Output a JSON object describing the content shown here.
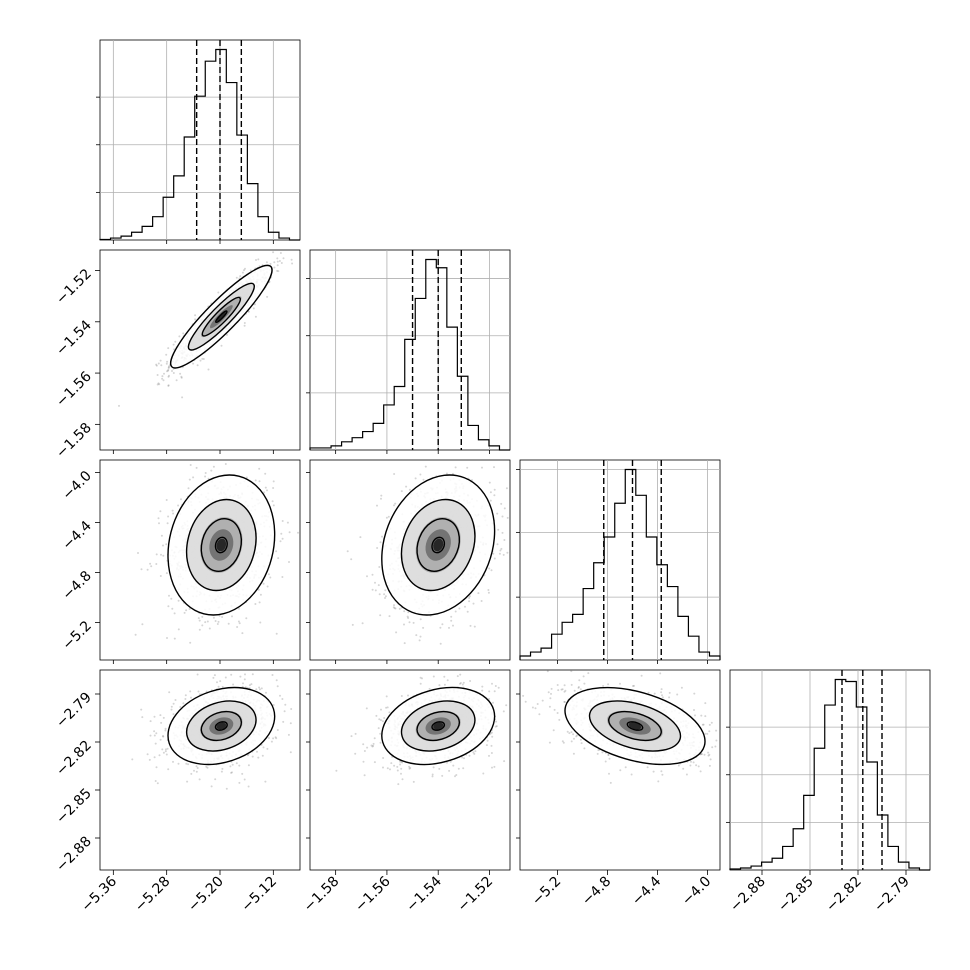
{
  "figure": {
    "type": "corner",
    "parameters": 4
  },
  "chart_data": {
    "type": "corner",
    "params": [
      {
        "range": [
          -5.38,
          -5.08
        ],
        "quantiles": [
          -5.235,
          -5.2,
          -5.168
        ],
        "ticks": [
          -5.36,
          -5.28,
          -5.2,
          -5.12
        ],
        "tick_labels": [
          "−5.36",
          "−5.28",
          "−5.20",
          "−5.12"
        ],
        "hist": [
          0.003,
          0.01,
          0.02,
          0.04,
          0.07,
          0.12,
          0.22,
          0.33,
          0.53,
          0.74,
          0.92,
          0.98,
          0.81,
          0.54,
          0.29,
          0.12,
          0.04,
          0.01,
          0.0
        ],
        "hist_yticks": [
          0.25,
          0.5,
          0.75
        ]
      },
      {
        "range": [
          -1.59,
          -1.512
        ],
        "quantiles": [
          -1.55,
          -1.54,
          -1.531
        ],
        "ticks": [
          -1.58,
          -1.56,
          -1.54,
          -1.52
        ],
        "tick_labels": [
          "−1.58",
          "−1.56",
          "−1.54",
          "−1.52"
        ],
        "hist": [
          0.01,
          0.01,
          0.02,
          0.04,
          0.06,
          0.09,
          0.13,
          0.22,
          0.31,
          0.54,
          0.74,
          0.93,
          0.89,
          0.6,
          0.36,
          0.12,
          0.05,
          0.02,
          0.0
        ],
        "hist_yticks": [
          0.3,
          0.6,
          0.9
        ]
      },
      {
        "range": [
          -5.5,
          -3.9
        ],
        "quantiles": [
          -4.83,
          -4.6,
          -4.37
        ],
        "ticks": [
          -5.2,
          -4.8,
          -4.4,
          -4.0
        ],
        "tick_labels": [
          "−5.2",
          "−4.8",
          "−4.4",
          "−4.0"
        ],
        "hist": [
          0.02,
          0.04,
          0.06,
          0.13,
          0.19,
          0.23,
          0.36,
          0.49,
          0.62,
          0.79,
          0.96,
          0.83,
          0.62,
          0.48,
          0.37,
          0.22,
          0.12,
          0.04,
          0.02
        ],
        "hist_yticks": [
          0.33,
          0.67,
          1.0
        ]
      },
      {
        "range": [
          -2.9,
          -2.775
        ],
        "quantiles": [
          -2.83,
          -2.817,
          -2.805
        ],
        "ticks": [
          -2.88,
          -2.85,
          -2.82,
          -2.79
        ],
        "tick_labels": [
          "−2.88",
          "−2.85",
          "−2.82",
          "−2.79"
        ],
        "hist": [
          0.005,
          0.01,
          0.02,
          0.04,
          0.06,
          0.12,
          0.21,
          0.38,
          0.62,
          0.84,
          0.97,
          0.96,
          0.83,
          0.55,
          0.28,
          0.12,
          0.04,
          0.01,
          0.0
        ],
        "hist_yticks": [
          0.25,
          0.5,
          0.75
        ]
      }
    ],
    "pairs": [
      {
        "i": 1,
        "j": 0,
        "mean": [
          -5.198,
          -1.538
        ],
        "sd": [
          0.038,
          0.01
        ],
        "rho": 0.91
      },
      {
        "i": 2,
        "j": 0,
        "mean": [
          -5.198,
          -4.58
        ],
        "sd": [
          0.04,
          0.28
        ],
        "rho": 0.15
      },
      {
        "i": 2,
        "j": 1,
        "mean": [
          -1.54,
          -4.58
        ],
        "sd": [
          0.011,
          0.28
        ],
        "rho": 0.2
      },
      {
        "i": 3,
        "j": 0,
        "mean": [
          -5.198,
          -2.81
        ],
        "sd": [
          0.04,
          0.012
        ],
        "rho": 0.25
      },
      {
        "i": 3,
        "j": 1,
        "mean": [
          -1.54,
          -2.81
        ],
        "sd": [
          0.011,
          0.012
        ],
        "rho": 0.25
      },
      {
        "i": 3,
        "j": 2,
        "mean": [
          -4.58,
          -2.81
        ],
        "sd": [
          0.28,
          0.012
        ],
        "rho": -0.4
      }
    ],
    "contour_levels": [
      0.39,
      0.86,
      0.99
    ],
    "quantile_style": "dashed",
    "grid": true
  }
}
